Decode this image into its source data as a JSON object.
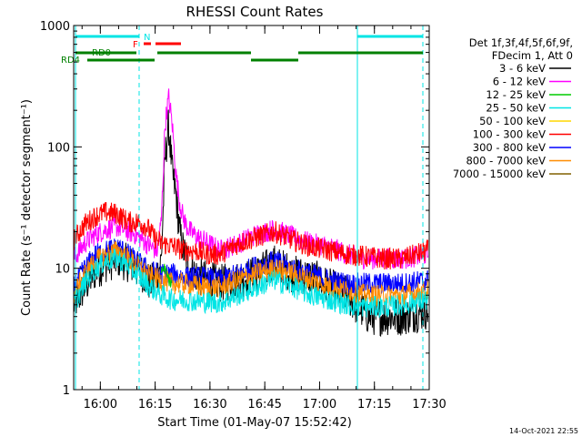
{
  "chart_data": {
    "type": "line",
    "title": "RHESSI Count Rates",
    "xlabel": "Start Time (01-May-07 15:52:42)",
    "ylabel": "Count Rate (s⁻¹ detector segment⁻¹)",
    "y_scale": "log",
    "ylim": [
      1,
      1000
    ],
    "xlim_minutes": [
      0,
      97.3
    ],
    "y_ticks": [
      1,
      10,
      100,
      1000
    ],
    "y_tick_labels": [
      "1",
      "10",
      "100",
      "1000"
    ],
    "x_ticks": [
      "16:00",
      "16:15",
      "16:30",
      "16:45",
      "17:00",
      "17:15",
      "17:30"
    ],
    "timestamp": "14-Oct-2021 22:55",
    "legend": {
      "position": "right",
      "header": [
        "Det 1f,3f,4f,5f,6f,9f,",
        "FDecim 1, Att 0"
      ],
      "entries": [
        {
          "label": "3 - 6 keV",
          "color": "#000000"
        },
        {
          "label": "6 - 12 keV",
          "color": "#ff00ff"
        },
        {
          "label": "12 - 25 keV",
          "color": "#00cc00"
        },
        {
          "label": "25 - 50 keV",
          "color": "#00e5e5"
        },
        {
          "label": "50 - 100 keV",
          "color": "#ffd700"
        },
        {
          "label": "100 - 300 keV",
          "color": "#ff0000"
        },
        {
          "label": "300 - 800 keV",
          "color": "#0000ff"
        },
        {
          "label": "800 - 7000 keV",
          "color": "#ff8c00"
        },
        {
          "label": "7000 - 15000 keV",
          "color": "#806000"
        }
      ]
    },
    "flags": {
      "N_label": "N",
      "F_label": "F",
      "RD0_label": "RD0",
      "RD4_label": "RD4"
    },
    "series": [
      {
        "name": "3 - 6 keV",
        "color": "#000000",
        "x": [
          0,
          3,
          6,
          9,
          12,
          15,
          17,
          19,
          21,
          23,
          24,
          25,
          26,
          27,
          28,
          29,
          30,
          31,
          32,
          34,
          37,
          40,
          45,
          50,
          55,
          60,
          65,
          70,
          75,
          77,
          79,
          81,
          85,
          90,
          97
        ],
        "y": [
          5,
          7,
          9.5,
          11,
          12,
          11,
          10,
          9,
          7.5,
          9,
          12,
          80,
          150,
          60,
          40,
          20,
          14,
          12,
          10,
          8.5,
          8,
          7.5,
          8,
          9,
          11,
          9,
          8.5,
          7,
          6,
          5,
          4.5,
          4,
          4,
          4,
          4.5
        ]
      },
      {
        "name": "6 - 12 keV",
        "color": "#ff00ff",
        "x": [
          0,
          3,
          6,
          9,
          12,
          15,
          17,
          19,
          21,
          23,
          24,
          25,
          26,
          27,
          28,
          29,
          30,
          31,
          32,
          34,
          37,
          40,
          45,
          50,
          55,
          60,
          65,
          70,
          75,
          80,
          85,
          90,
          97
        ],
        "y": [
          12,
          16,
          19,
          21,
          22,
          20,
          19,
          17,
          15,
          14,
          25,
          150,
          260,
          150,
          60,
          35,
          26,
          22,
          20,
          18,
          16,
          14,
          16,
          19,
          21,
          18,
          16,
          15,
          13,
          12,
          12,
          12,
          13
        ]
      },
      {
        "name": "100 - 300 keV",
        "color": "#ff0000",
        "x": [
          0,
          3,
          6,
          9,
          12,
          15,
          18,
          20,
          22,
          24,
          26,
          28,
          30,
          33,
          37,
          40,
          45,
          50,
          55,
          60,
          65,
          70,
          75,
          80,
          85,
          90,
          97
        ],
        "y": [
          17,
          23,
          27,
          29,
          28,
          24,
          24,
          22,
          18,
          16,
          15.5,
          15,
          14,
          14,
          13,
          13,
          16,
          18,
          20,
          17,
          15,
          14,
          13,
          12.5,
          12,
          12,
          14
        ]
      },
      {
        "name": "300 - 800 keV",
        "color": "#0000ff",
        "x": [
          0,
          3,
          6,
          9,
          12,
          15,
          18,
          21,
          24,
          27,
          30,
          35,
          40,
          45,
          50,
          55,
          60,
          65,
          70,
          75,
          80,
          85,
          90,
          97
        ],
        "y": [
          7,
          10,
          13,
          14,
          15,
          13,
          11,
          9.5,
          9,
          9,
          8.5,
          8.5,
          8,
          9,
          10.5,
          11.5,
          10,
          9,
          8,
          7.5,
          7.5,
          7.5,
          7.5,
          8
        ]
      },
      {
        "name": "800 - 7000 keV",
        "color": "#ff8c00",
        "x": [
          0,
          3,
          6,
          9,
          12,
          15,
          18,
          21,
          24,
          27,
          30,
          35,
          40,
          45,
          50,
          55,
          60,
          65,
          70,
          75,
          80,
          85,
          90,
          97
        ],
        "y": [
          6,
          9,
          11.5,
          13,
          14,
          12,
          10,
          8.5,
          8,
          7.5,
          7.5,
          7,
          7,
          8,
          9,
          10,
          9,
          8,
          7,
          6.5,
          6,
          6,
          6,
          6.5
        ]
      },
      {
        "name": "25 - 50 keV",
        "color": "#00e5e5",
        "x": [
          0,
          3,
          6,
          9,
          12,
          15,
          18,
          21,
          24,
          27,
          30,
          35,
          40,
          45,
          50,
          55,
          60,
          65,
          70,
          75,
          80,
          85,
          90,
          97
        ],
        "y": [
          5,
          7.5,
          10,
          11.5,
          12,
          10.5,
          8.5,
          7,
          6,
          5.5,
          5.5,
          5.3,
          5.2,
          6,
          7,
          8,
          7,
          6,
          5.5,
          5,
          4.8,
          4.8,
          5,
          5.5
        ]
      },
      {
        "name": "12 - 25 keV",
        "color": "#00cc00",
        "x": [
          24,
          25,
          26,
          27
        ],
        "y": [
          9,
          10,
          8,
          7
        ]
      }
    ]
  }
}
